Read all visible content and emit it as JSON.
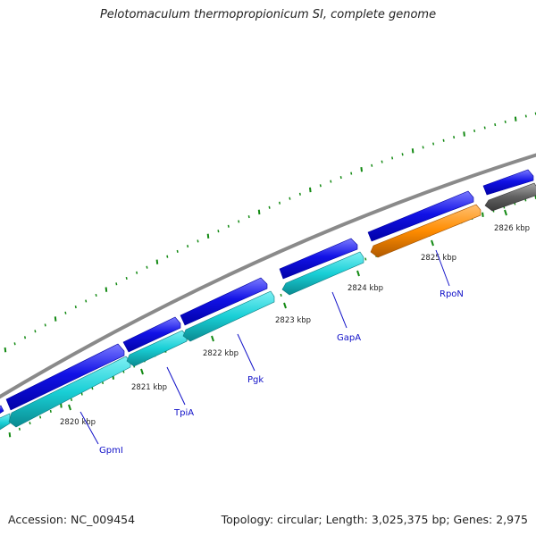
{
  "title": "Pelotomaculum thermopropionicum SI, complete genome",
  "footer": {
    "accession": "Accession: NC_009454",
    "stats": "Topology: circular; Length: 3,025,375 bp; Genes: 2,975"
  },
  "colors": {
    "backbone": "#8a8a8a",
    "forward_gene": "#1212e6",
    "reverse_cds": "#19cfd6",
    "reverse_rna": "#ff8c00",
    "other_feature": "#606060",
    "ticks": "#138a13",
    "gene_label": "#1010c8"
  },
  "scale_labels": [
    "2820 kbp",
    "2821 kbp",
    "2822 kbp",
    "2823 kbp",
    "2824 kbp",
    "2825 kbp",
    "2826 kbp"
  ],
  "gene_labels": [
    "GpmI",
    "TpiA",
    "Pgk",
    "GapA",
    "RpoN"
  ]
}
